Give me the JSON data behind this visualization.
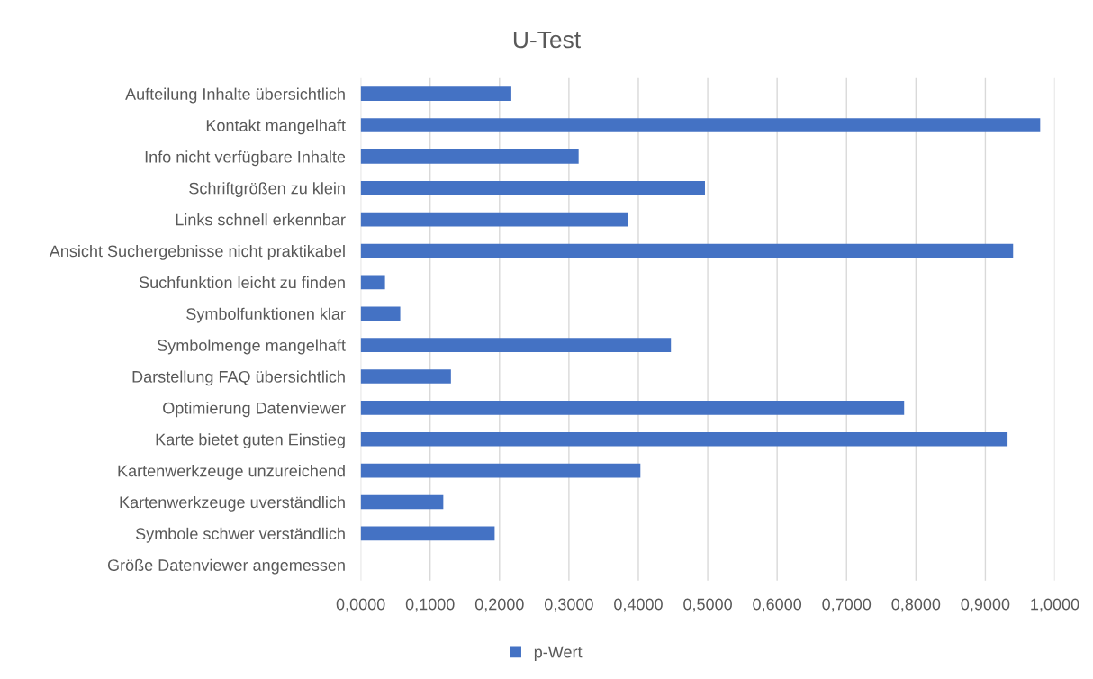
{
  "chart_data": {
    "type": "bar",
    "orientation": "horizontal",
    "title": "U-Test",
    "categories": [
      "Aufteilung Inhalte übersichtlich",
      "Kontakt mangelhaft",
      "Info nicht verfügbare Inhalte",
      "Schriftgrößen zu klein",
      "Links schnell erkennbar",
      "Ansicht Suchergebnisse nicht praktikabel",
      "Suchfunktion leicht zu finden",
      "Symbolfunktionen klar",
      "Symbolmenge mangelhaft",
      "Darstellung FAQ übersichtlich",
      "Optimierung Datenviewer",
      "Karte bietet guten Einstieg",
      "Kartenwerkzeuge unzureichend",
      "Kartenwerkzeuge uverständlich",
      "Symbole schwer verständlich",
      "Größe Datenviewer angemessen"
    ],
    "series": [
      {
        "name": "p-Wert",
        "color": "#4472c4",
        "values": [
          0.217,
          0.979,
          0.314,
          0.496,
          0.385,
          0.94,
          0.035,
          0.057,
          0.447,
          0.13,
          0.783,
          0.932,
          0.403,
          0.119,
          0.193,
          0.0
        ]
      }
    ],
    "xlim": [
      0,
      1.0
    ],
    "xticks": [
      {
        "value": 0,
        "label": "0,0000"
      },
      {
        "value": 0.1,
        "label": "0,1000"
      },
      {
        "value": 0.2,
        "label": "0,2000"
      },
      {
        "value": 0.3,
        "label": "0,3000"
      },
      {
        "value": 0.4,
        "label": "0,4000"
      },
      {
        "value": 0.5,
        "label": "0,5000"
      },
      {
        "value": 0.6,
        "label": "0,6000"
      },
      {
        "value": 0.7,
        "label": "0,7000"
      },
      {
        "value": 0.8,
        "label": "0,8000"
      },
      {
        "value": 0.9,
        "label": "0,9000"
      },
      {
        "value": 1.0,
        "label": "1,0000"
      }
    ],
    "grid": "x",
    "legend": "bottom"
  }
}
